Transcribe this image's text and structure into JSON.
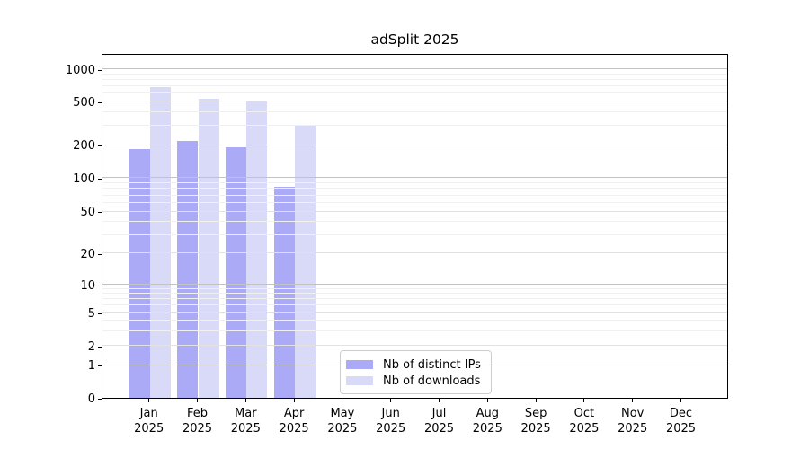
{
  "title": "adSplit 2025",
  "chart_data": {
    "type": "bar",
    "title": "adSplit 2025",
    "categories": [
      "Jan 2025",
      "Feb 2025",
      "Mar 2025",
      "Apr 2025",
      "May 2025",
      "Jun 2025",
      "Jul 2025",
      "Aug 2025",
      "Sep 2025",
      "Oct 2025",
      "Nov 2025",
      "Dec 2025"
    ],
    "month_labels": [
      "Jan",
      "Feb",
      "Mar",
      "Apr",
      "May",
      "Jun",
      "Jul",
      "Aug",
      "Sep",
      "Oct",
      "Nov",
      "Dec"
    ],
    "year_label": "2025",
    "series": [
      {
        "name": "Nb of distinct IPs",
        "color": "#aaaaf6",
        "values": [
          185,
          220,
          190,
          83,
          null,
          null,
          null,
          null,
          null,
          null,
          null,
          null
        ]
      },
      {
        "name": "Nb of downloads",
        "color": "#d9d9f8",
        "values": [
          690,
          530,
          515,
          300,
          null,
          null,
          null,
          null,
          null,
          null,
          null,
          null
        ]
      }
    ],
    "y_axis": {
      "scale": "log-with-zero",
      "ticks": [
        0,
        1,
        2,
        5,
        10,
        20,
        50,
        100,
        200,
        500,
        1000
      ],
      "minor_gridlines": [
        3,
        4,
        6,
        7,
        8,
        9,
        30,
        40,
        60,
        70,
        80,
        90,
        300,
        400,
        600,
        700,
        800,
        900
      ],
      "major_gridline_ticks": [
        1,
        10,
        100,
        1000
      ],
      "mid_gridline_ticks": [
        2,
        5,
        20,
        50,
        200,
        500
      ]
    },
    "grid": "horizontal",
    "legend_position": "inside-bottom-center"
  },
  "colors": {
    "bar_distinct_ips": "#aaaaf6",
    "bar_downloads": "#d9d9f8",
    "grid_major": "#c3c3c3",
    "grid_mid": "#e2e2e2",
    "grid_minor": "#f0f0f0",
    "axis": "#000000",
    "legend_border": "#cccccc",
    "background": "#ffffff"
  }
}
